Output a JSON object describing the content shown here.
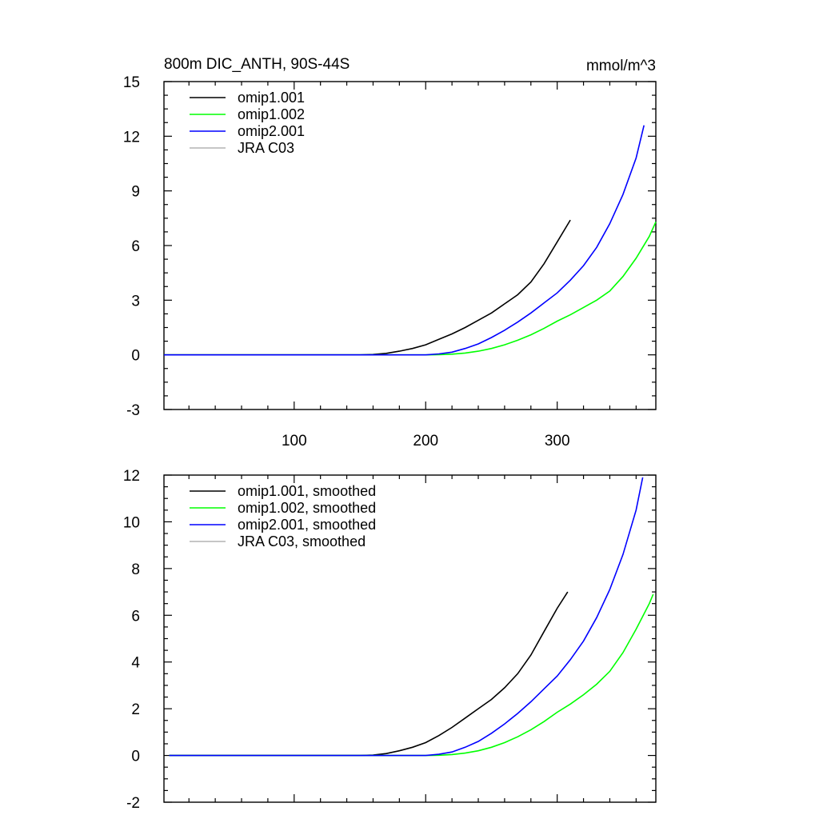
{
  "chart_data": [
    {
      "type": "line",
      "title": "800m DIC_ANTH, 90S-44S",
      "units": "mmol/m^3",
      "xlim": [
        1,
        375
      ],
      "ylim": [
        -3,
        15
      ],
      "xticks": [
        100,
        200,
        300
      ],
      "yticks": [
        -3,
        0,
        3,
        6,
        9,
        12,
        15
      ],
      "legend_position": "top-left",
      "series": [
        {
          "name": "omip1.001",
          "color": "#000000",
          "x": [
            1,
            100,
            150,
            160,
            170,
            180,
            190,
            200,
            210,
            220,
            230,
            240,
            250,
            260,
            270,
            280,
            290,
            300,
            310
          ],
          "y": [
            0,
            0,
            0,
            0.02,
            0.08,
            0.2,
            0.35,
            0.55,
            0.85,
            1.15,
            1.5,
            1.9,
            2.3,
            2.8,
            3.3,
            4.0,
            5.0,
            6.2,
            7.4
          ]
        },
        {
          "name": "omip1.002",
          "color": "#00ff00",
          "x": [
            1,
            100,
            200,
            210,
            220,
            230,
            240,
            250,
            260,
            270,
            280,
            290,
            300,
            310,
            320,
            330,
            340,
            350,
            360,
            370,
            375
          ],
          "y": [
            0,
            0,
            0,
            0.01,
            0.04,
            0.1,
            0.2,
            0.35,
            0.55,
            0.8,
            1.1,
            1.45,
            1.85,
            2.2,
            2.6,
            3.0,
            3.5,
            4.3,
            5.3,
            6.5,
            7.3
          ]
        },
        {
          "name": "omip2.001",
          "color": "#0000ff",
          "x": [
            1,
            100,
            200,
            210,
            220,
            230,
            240,
            250,
            260,
            270,
            280,
            290,
            300,
            310,
            320,
            330,
            340,
            350,
            360,
            366
          ],
          "y": [
            0,
            0,
            0,
            0.05,
            0.15,
            0.35,
            0.6,
            0.95,
            1.35,
            1.8,
            2.3,
            2.85,
            3.4,
            4.1,
            4.9,
            5.9,
            7.2,
            8.8,
            10.8,
            12.6
          ]
        },
        {
          "name": "JRA C03",
          "color": "#b4b4b4",
          "x": [],
          "y": []
        }
      ]
    },
    {
      "type": "line",
      "title": "",
      "xlim": [
        1,
        375
      ],
      "ylim": [
        -2,
        12
      ],
      "xticks": [],
      "yticks": [
        -2,
        0,
        2,
        4,
        6,
        8,
        10,
        12
      ],
      "legend_position": "top-left",
      "series": [
        {
          "name": "omip1.001, smoothed",
          "color": "#000000",
          "x": [
            5,
            100,
            150,
            160,
            170,
            180,
            190,
            200,
            210,
            220,
            230,
            240,
            250,
            260,
            270,
            280,
            290,
            300,
            308
          ],
          "y": [
            0,
            0,
            0,
            0.02,
            0.08,
            0.2,
            0.35,
            0.55,
            0.85,
            1.2,
            1.6,
            2.0,
            2.4,
            2.9,
            3.5,
            4.3,
            5.3,
            6.3,
            7.0
          ]
        },
        {
          "name": "omip1.002, smoothed",
          "color": "#00ff00",
          "x": [
            5,
            100,
            200,
            210,
            220,
            230,
            240,
            250,
            260,
            270,
            280,
            290,
            300,
            310,
            320,
            330,
            340,
            350,
            360,
            370,
            373
          ],
          "y": [
            0,
            0,
            0,
            0.01,
            0.04,
            0.1,
            0.2,
            0.35,
            0.55,
            0.8,
            1.1,
            1.45,
            1.85,
            2.2,
            2.6,
            3.05,
            3.6,
            4.4,
            5.4,
            6.5,
            6.9
          ]
        },
        {
          "name": "omip2.001, smoothed",
          "color": "#0000ff",
          "x": [
            5,
            100,
            200,
            210,
            220,
            230,
            240,
            250,
            260,
            270,
            280,
            290,
            300,
            310,
            320,
            330,
            340,
            350,
            360,
            365
          ],
          "y": [
            0,
            0,
            0,
            0.05,
            0.15,
            0.35,
            0.6,
            0.95,
            1.35,
            1.8,
            2.3,
            2.85,
            3.4,
            4.1,
            4.9,
            5.9,
            7.1,
            8.6,
            10.5,
            11.9
          ]
        },
        {
          "name": "JRA C03, smoothed",
          "color": "#b4b4b4",
          "x": [],
          "y": []
        }
      ]
    }
  ]
}
